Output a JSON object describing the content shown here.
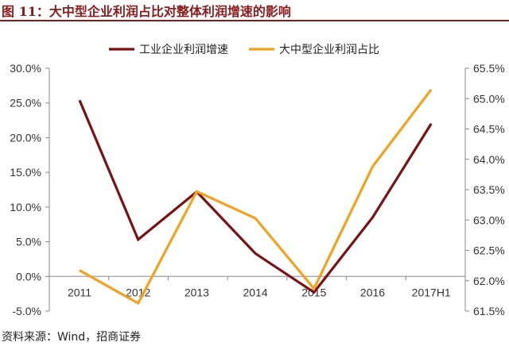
{
  "header": {
    "title": "图 11：大中型企业利润占比对整体利润增速的影响"
  },
  "footer": {
    "source": "资料来源：Wind，招商证券"
  },
  "chart_data": {
    "type": "line",
    "categories": [
      "2011",
      "2012",
      "2013",
      "2014",
      "2015",
      "2016",
      "2017H1"
    ],
    "series": [
      {
        "name": "工业企业利润增速",
        "axis": "left",
        "color": "#7b1113",
        "values": [
          25.4,
          5.3,
          12.2,
          3.3,
          -2.3,
          8.5,
          22.0
        ]
      },
      {
        "name": "大中型企业利润占比",
        "axis": "right",
        "color": "#f2a21f",
        "values": [
          62.17,
          61.63,
          63.47,
          63.03,
          61.87,
          63.88,
          65.15
        ]
      }
    ],
    "y_left": {
      "ylim": [
        -5,
        30
      ],
      "ticks": [
        "-5.0%",
        "0.0%",
        "5.0%",
        "10.0%",
        "15.0%",
        "20.0%",
        "25.0%",
        "30.0%"
      ],
      "tick_values": [
        -5,
        0,
        5,
        10,
        15,
        20,
        25,
        30
      ]
    },
    "y_right": {
      "ylim": [
        61.5,
        65.5
      ],
      "ticks": [
        "61.5%",
        "62.0%",
        "62.5%",
        "63.0%",
        "63.5%",
        "64.0%",
        "64.5%",
        "65.0%",
        "65.5%"
      ],
      "tick_values": [
        61.5,
        62.0,
        62.5,
        63.0,
        63.5,
        64.0,
        64.5,
        65.0,
        65.5
      ]
    },
    "grid": false,
    "legend_position": "top"
  }
}
